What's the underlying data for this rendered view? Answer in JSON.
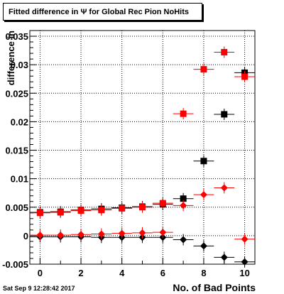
{
  "title": "Fitted difference in  Ψ  for Global Rec Pion NoHits",
  "footer": "Sat Sep  9 12:28:42 2017",
  "chart_data": {
    "type": "scatter",
    "title": "Fitted difference in  Ψ  for Global Rec Pion NoHits",
    "xlabel": "No. of Bad Points",
    "ylabel": "difference in",
    "xlim": [
      -0.5,
      10.5
    ],
    "ylim": [
      -0.005,
      0.036
    ],
    "xticks": [
      0,
      2,
      4,
      6,
      8,
      10
    ],
    "yticks": [
      -0.005,
      0,
      0.005,
      0.01,
      0.015,
      0.02,
      0.025,
      0.03,
      0.035
    ],
    "ytick_labels": [
      "-0.005",
      "0",
      "0.005",
      "0.01",
      "0.015",
      "0.02",
      "0.025",
      "0.03",
      "0.035"
    ],
    "grid": true,
    "series": [
      {
        "color": "#000000",
        "marker": "square",
        "x": [
          0,
          1,
          2,
          3,
          4,
          5,
          6,
          7,
          8,
          9,
          10
        ],
        "y": [
          0.0041,
          0.0042,
          0.0045,
          0.0047,
          0.0049,
          0.0051,
          0.0055,
          0.0065,
          0.0131,
          0.0213,
          0.0286
        ]
      },
      {
        "color": "#ff0000",
        "marker": "square",
        "x": [
          0,
          1,
          2,
          3,
          4,
          5,
          6,
          7,
          8,
          9,
          10
        ],
        "y": [
          0.004,
          0.0041,
          0.0044,
          0.0045,
          0.0048,
          0.005,
          0.0057,
          0.0214,
          0.0292,
          0.0322,
          0.0279
        ]
      },
      {
        "color": "#000000",
        "marker": "diamond",
        "x": [
          0,
          1,
          2,
          3,
          4,
          5,
          6,
          7,
          8,
          9,
          10
        ],
        "y": [
          -0.0002,
          -0.0002,
          -0.0002,
          -0.0003,
          -0.0003,
          -0.0003,
          -0.0003,
          -0.0007,
          -0.0018,
          -0.0038,
          -0.0046
        ]
      },
      {
        "color": "#ff0000",
        "marker": "diamond",
        "x": [
          0,
          1,
          2,
          3,
          4,
          5,
          6,
          7,
          8,
          9,
          10
        ],
        "y": [
          0.0001,
          0.0001,
          0.0002,
          0.0003,
          0.0004,
          0.0005,
          0.0006,
          0.0053,
          0.0072,
          0.0084,
          -0.0006
        ]
      }
    ]
  }
}
